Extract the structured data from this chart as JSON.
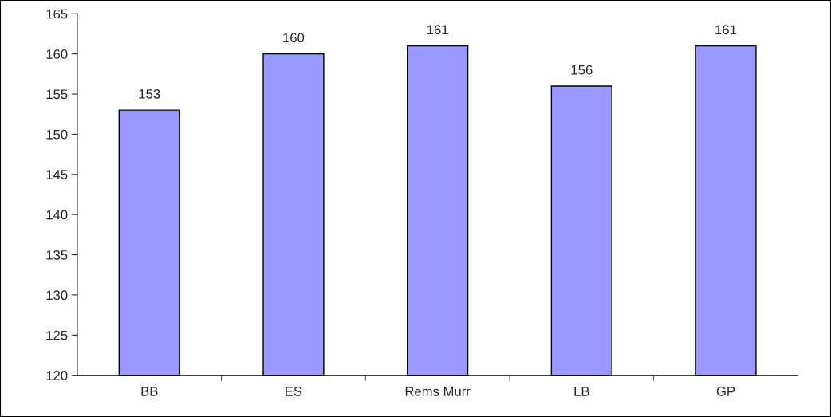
{
  "chart_data": {
    "type": "bar",
    "categories": [
      "BB",
      "ES",
      "Rems Murr",
      "LB",
      "GP"
    ],
    "values": [
      153,
      160,
      161,
      156,
      161
    ],
    "color": "#9999ff",
    "ylim": [
      120,
      165
    ],
    "yticks": [
      120,
      125,
      130,
      135,
      140,
      145,
      150,
      155,
      160,
      165
    ],
    "grid": false,
    "data_labels": true
  }
}
